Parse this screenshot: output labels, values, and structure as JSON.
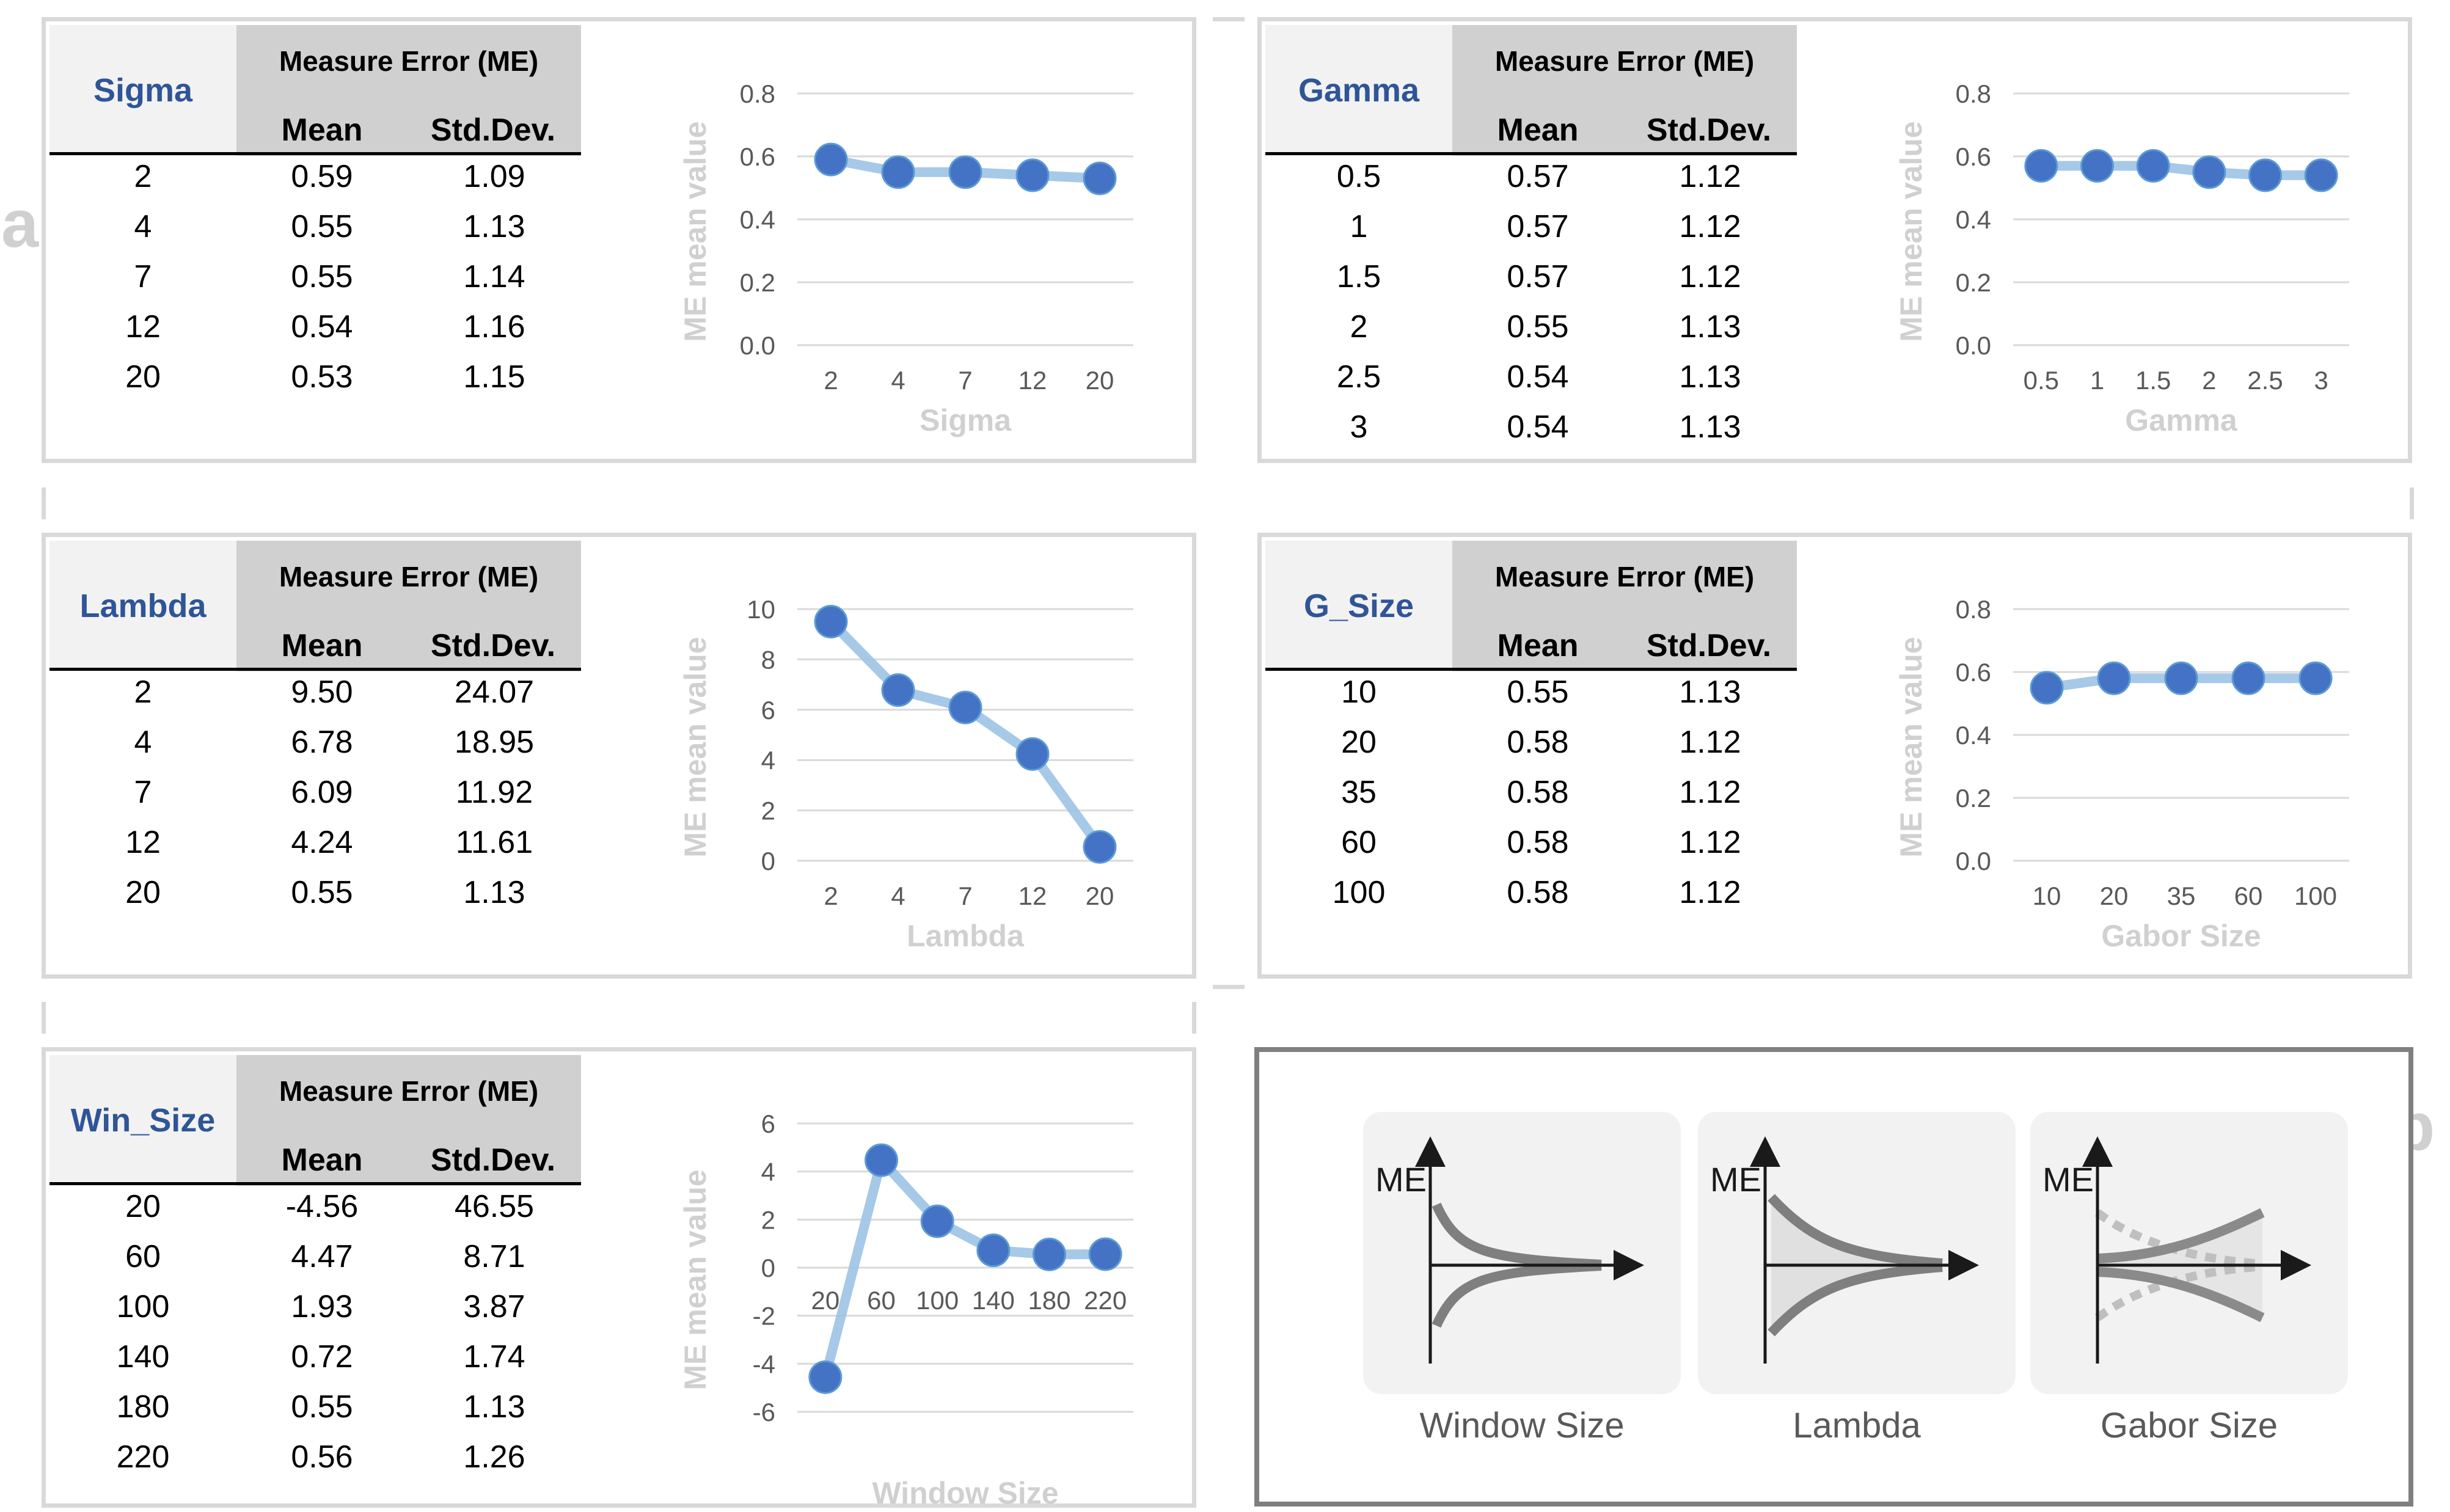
{
  "panel_letters": {
    "a": "a",
    "b": "b"
  },
  "table_common": {
    "group_title": "Measure Error  (ME)",
    "col_mean": "Mean",
    "col_std": "Std.Dev."
  },
  "y_label": "ME mean value",
  "chart_data": [
    {
      "id": "sigma",
      "type": "line",
      "param_name": "Sigma",
      "xlabel": "Sigma",
      "ylabel": "ME mean value",
      "categories": [
        "2",
        "4",
        "7",
        "12",
        "20"
      ],
      "values": [
        0.59,
        0.55,
        0.55,
        0.54,
        0.53
      ],
      "std": [
        1.09,
        1.13,
        1.14,
        1.16,
        1.15
      ],
      "mean_text": [
        "0.59",
        "0.55",
        "0.55",
        "0.54",
        "0.53"
      ],
      "std_text": [
        "1.09",
        "1.13",
        "1.14",
        "1.16",
        "1.15"
      ],
      "ylim": [
        0,
        0.8
      ],
      "yticks": [
        "0.0",
        "0.2",
        "0.4",
        "0.6",
        "0.8"
      ],
      "grid": true
    },
    {
      "id": "gamma",
      "type": "line",
      "param_name": "Gamma",
      "xlabel": "Gamma",
      "ylabel": "ME mean value",
      "categories": [
        "0.5",
        "1",
        "1.5",
        "2",
        "2.5",
        "3"
      ],
      "values": [
        0.57,
        0.57,
        0.57,
        0.55,
        0.54,
        0.54
      ],
      "std": [
        1.12,
        1.12,
        1.12,
        1.13,
        1.13,
        1.13
      ],
      "mean_text": [
        "0.57",
        "0.57",
        "0.57",
        "0.55",
        "0.54",
        "0.54"
      ],
      "std_text": [
        "1.12",
        "1.12",
        "1.12",
        "1.13",
        "1.13",
        "1.13"
      ],
      "ylim": [
        0,
        0.8
      ],
      "yticks": [
        "0.0",
        "0.2",
        "0.4",
        "0.6",
        "0.8"
      ],
      "grid": true
    },
    {
      "id": "lambda",
      "type": "line",
      "param_name": "Lambda",
      "xlabel": "Lambda",
      "ylabel": "ME mean value",
      "categories": [
        "2",
        "4",
        "7",
        "12",
        "20"
      ],
      "values": [
        9.5,
        6.78,
        6.09,
        4.24,
        0.55
      ],
      "std": [
        24.07,
        18.95,
        11.92,
        11.61,
        1.13
      ],
      "mean_text": [
        "9.50",
        "6.78",
        "6.09",
        "4.24",
        "0.55"
      ],
      "std_text": [
        "24.07",
        "18.95",
        "11.92",
        "11.61",
        "1.13"
      ],
      "ylim": [
        0,
        10
      ],
      "yticks": [
        "0",
        "2",
        "4",
        "6",
        "8",
        "10"
      ],
      "grid": true
    },
    {
      "id": "gsize",
      "type": "line",
      "param_name": "G_Size",
      "xlabel": "Gabor Size",
      "ylabel": "ME mean value",
      "categories": [
        "10",
        "20",
        "35",
        "60",
        "100"
      ],
      "values": [
        0.55,
        0.58,
        0.58,
        0.58,
        0.58
      ],
      "std": [
        1.13,
        1.12,
        1.12,
        1.12,
        1.12
      ],
      "mean_text": [
        "0.55",
        "0.58",
        "0.58",
        "0.58",
        "0.58"
      ],
      "std_text": [
        "1.13",
        "1.12",
        "1.12",
        "1.12",
        "1.12"
      ],
      "ylim": [
        0,
        0.8
      ],
      "yticks": [
        "0.0",
        "0.2",
        "0.4",
        "0.6",
        "0.8"
      ],
      "grid": true
    },
    {
      "id": "win",
      "type": "line",
      "param_name": "Win_Size",
      "xlabel": "Window Size",
      "ylabel": "ME mean value",
      "categories": [
        "20",
        "60",
        "100",
        "140",
        "180",
        "220"
      ],
      "values": [
        -4.56,
        4.47,
        1.93,
        0.72,
        0.55,
        0.56
      ],
      "std": [
        46.55,
        8.71,
        3.87,
        1.74,
        1.13,
        1.26
      ],
      "mean_text": [
        "-4.56",
        "4.47",
        "1.93",
        "0.72",
        "0.55",
        "0.56"
      ],
      "std_text": [
        "46.55",
        "8.71",
        "3.87",
        "1.74",
        "1.13",
        "1.26"
      ],
      "ylim": [
        -6,
        6
      ],
      "yticks": [
        "-6",
        "-4",
        "-2",
        "0",
        "2",
        "4",
        "6"
      ],
      "grid": true
    }
  ],
  "schematics": [
    {
      "id": "window",
      "label": "Window Size",
      "axis_label": "ME"
    },
    {
      "id": "lambda",
      "label": "Lambda",
      "axis_label": "ME"
    },
    {
      "id": "gabor",
      "label": "Gabor Size",
      "axis_label": "ME"
    }
  ]
}
